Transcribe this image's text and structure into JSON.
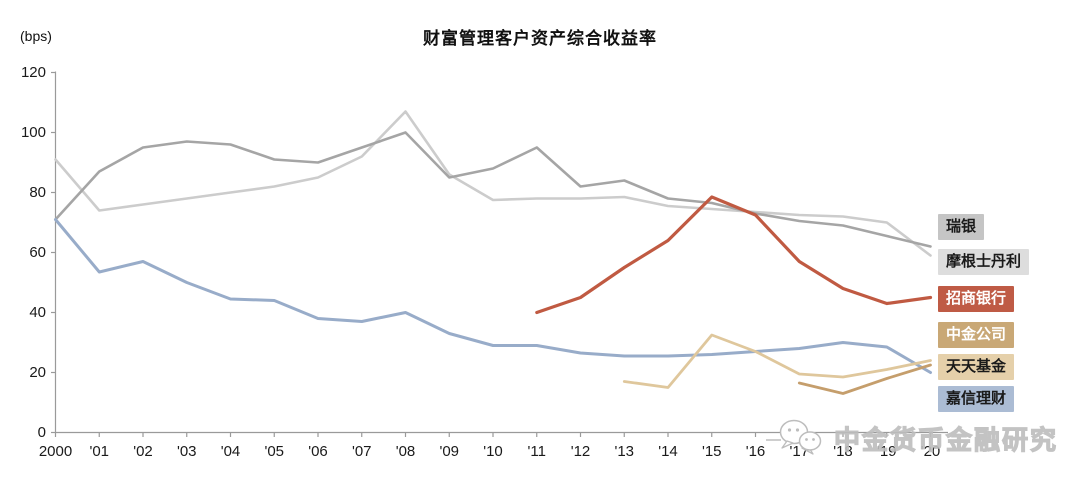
{
  "title": "财富管理客户资产综合收益率",
  "y_axis": {
    "unit": "(bps)",
    "ticks": [
      120,
      100,
      80,
      60,
      40,
      20,
      0
    ]
  },
  "x_axis": {
    "labels": [
      "2000",
      "'01",
      "'02",
      "'03",
      "'04",
      "'05",
      "'06",
      "'07",
      "'08",
      "'09",
      "'10",
      "'11",
      "'12",
      "'13",
      "'14",
      "'15",
      "'16",
      "'17",
      "'18",
      "'19",
      "'20"
    ]
  },
  "watermark": {
    "text": "中金货币金融研究",
    "logo": "wechat-bubbles-icon"
  },
  "chart_data": {
    "type": "line",
    "unit": "bps",
    "title": "财富管理客户资产综合收益率",
    "ylim": [
      0,
      120
    ],
    "grid": false,
    "legend_position": "right",
    "years": [
      2000,
      2001,
      2002,
      2003,
      2004,
      2005,
      2006,
      2007,
      2008,
      2009,
      2010,
      2011,
      2012,
      2013,
      2014,
      2015,
      2016,
      2017,
      2018,
      2019,
      2020
    ],
    "series": [
      {
        "name": "瑞银",
        "color": "#a5a5a5",
        "width": 2.6,
        "start_year": 2000,
        "values": [
          71,
          87,
          95,
          97,
          96,
          91,
          90,
          95,
          100,
          85,
          88,
          95,
          82,
          84,
          78,
          76.5,
          73,
          70.5,
          69,
          65.5,
          62
        ]
      },
      {
        "name": "摩根士丹利",
        "color": "#cccccc",
        "width": 2.6,
        "start_year": 2000,
        "values": [
          91,
          74,
          76,
          78,
          80,
          82,
          85,
          92,
          107,
          86,
          77.5,
          78,
          78,
          78.5,
          75.5,
          74.5,
          73.5,
          72.5,
          72,
          70,
          59
        ]
      },
      {
        "name": "招商银行",
        "color": "#c05a42",
        "width": 3.2,
        "start_year": 2011,
        "values": [
          40,
          45,
          55,
          64,
          78.5,
          72.5,
          57,
          48,
          43,
          45
        ]
      },
      {
        "name": "中金公司",
        "color": "#c59e6c",
        "width": 2.8,
        "start_year": 2017,
        "values": [
          16.5,
          13,
          18,
          22.5
        ]
      },
      {
        "name": "天天基金",
        "color": "#dfc79c",
        "width": 2.8,
        "start_year": 2013,
        "values": [
          17,
          15,
          32.5,
          27,
          19.5,
          18.5,
          21,
          24
        ]
      },
      {
        "name": "嘉信理财",
        "color": "#98acc9",
        "width": 3.0,
        "start_year": 2000,
        "values": [
          71,
          53.5,
          57,
          50,
          44.5,
          44,
          38,
          37,
          40,
          33,
          29,
          29,
          26.5,
          25.5,
          25.5,
          26,
          27,
          28,
          30,
          28.5,
          20
        ]
      }
    ],
    "legend": [
      {
        "label": "瑞银",
        "bg": "#c5c5c5",
        "fg": "#1a1a1a"
      },
      {
        "label": "摩根士丹利",
        "bg": "#dddddd",
        "fg": "#1a1a1a"
      },
      {
        "label": "招商银行",
        "bg": "#bf5b45",
        "fg": "#ffffff"
      },
      {
        "label": "中金公司",
        "bg": "#c9a876",
        "fg": "#ffffff"
      },
      {
        "label": "天天基金",
        "bg": "#e5d0aa",
        "fg": "#1a1a1a"
      },
      {
        "label": "嘉信理财",
        "bg": "#abbcd4",
        "fg": "#1a1a1a"
      }
    ]
  }
}
